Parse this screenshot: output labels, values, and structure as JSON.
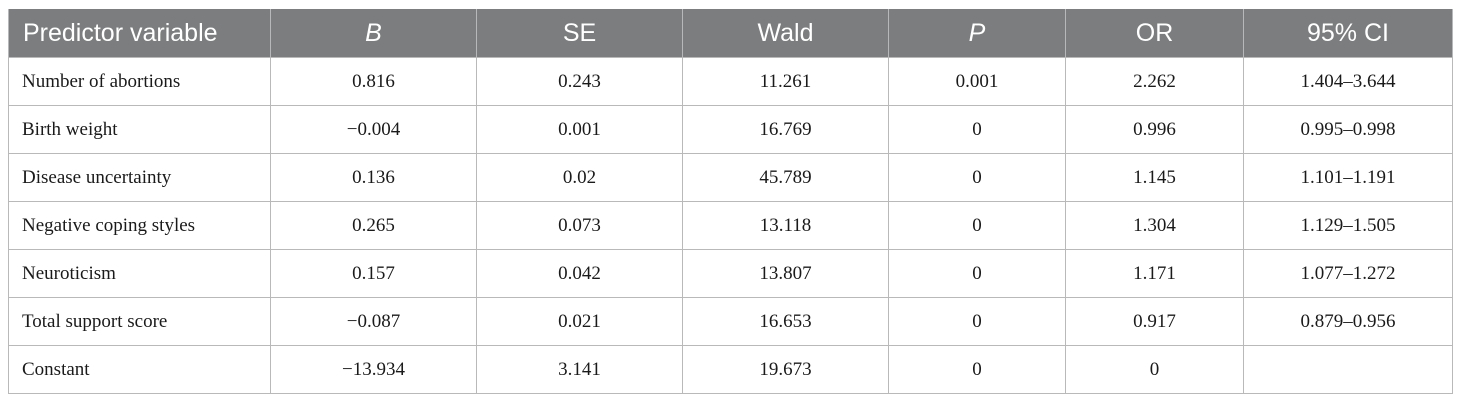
{
  "table": {
    "headers": [
      "Predictor variable",
      "B",
      "SE",
      "Wald",
      "P",
      "OR",
      "95% CI"
    ],
    "rows": [
      [
        "Number of abortions",
        "0.816",
        "0.243",
        "11.261",
        "0.001",
        "2.262",
        "1.404–3.644"
      ],
      [
        "Birth weight",
        "−0.004",
        "0.001",
        "16.769",
        "0",
        "0.996",
        "0.995–0.998"
      ],
      [
        "Disease uncertainty",
        "0.136",
        "0.02",
        "45.789",
        "0",
        "1.145",
        "1.101–1.191"
      ],
      [
        "Negative coping styles",
        "0.265",
        "0.073",
        "13.118",
        "0",
        "1.304",
        "1.129–1.505"
      ],
      [
        "Neuroticism",
        "0.157",
        "0.042",
        "13.807",
        "0",
        "1.171",
        "1.077–1.272"
      ],
      [
        "Total support score",
        "−0.087",
        "0.021",
        "16.653",
        "0",
        "0.917",
        "0.879–0.956"
      ],
      [
        "Constant",
        "−13.934",
        "3.141",
        "19.673",
        "0",
        "0",
        ""
      ]
    ]
  },
  "colors": {
    "header_background": "#7b7d7e",
    "header_text": "#ffffff",
    "grid_line": "#b9b9b9"
  }
}
